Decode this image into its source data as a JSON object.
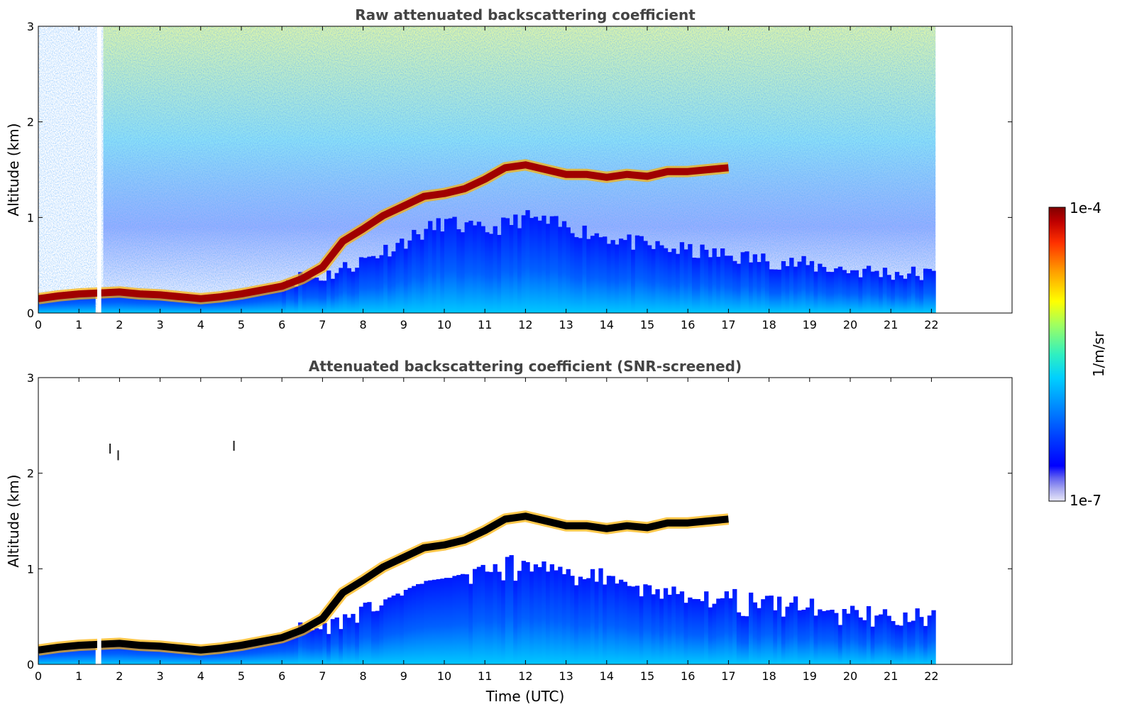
{
  "chart_data": [
    {
      "type": "heatmap",
      "title": "Raw attenuated backscattering coefficient",
      "xlabel": "",
      "ylabel": "Altitude (km)",
      "xlim": [
        0,
        24
      ],
      "ylim": [
        0,
        3
      ],
      "x_ticks": [
        "0",
        "1",
        "2",
        "3",
        "4",
        "5",
        "6",
        "7",
        "8",
        "9",
        "10",
        "11",
        "12",
        "13",
        "14",
        "15",
        "16",
        "17",
        "18",
        "19",
        "20",
        "21",
        "22"
      ],
      "y_ticks": [
        "0",
        "1",
        "2",
        "3"
      ],
      "data_end_time": 22.1,
      "gap_time": [
        1.45,
        1.55
      ],
      "noise_level": "high",
      "layers": {
        "boundary_layer_top_km": [
          [
            0,
            0.15
          ],
          [
            0.5,
            0.18
          ],
          [
            1.0,
            0.2
          ],
          [
            1.5,
            0.21
          ],
          [
            2.0,
            0.22
          ],
          [
            2.5,
            0.2
          ],
          [
            3.0,
            0.19
          ],
          [
            3.5,
            0.17
          ],
          [
            4.0,
            0.15
          ],
          [
            4.5,
            0.17
          ],
          [
            5.0,
            0.2
          ],
          [
            5.5,
            0.24
          ],
          [
            6.0,
            0.28
          ],
          [
            6.5,
            0.36
          ],
          [
            7.0,
            0.48
          ],
          [
            7.5,
            0.75
          ],
          [
            8.0,
            0.88
          ],
          [
            8.5,
            1.02
          ],
          [
            9.0,
            1.12
          ],
          [
            9.5,
            1.22
          ],
          [
            10.0,
            1.25
          ],
          [
            10.5,
            1.3
          ],
          [
            11.0,
            1.4
          ],
          [
            11.5,
            1.52
          ],
          [
            12.0,
            1.55
          ],
          [
            12.5,
            1.5
          ],
          [
            13.0,
            1.45
          ],
          [
            13.5,
            1.45
          ],
          [
            14.0,
            1.42
          ],
          [
            14.5,
            1.45
          ],
          [
            15.0,
            1.43
          ],
          [
            15.5,
            1.48
          ],
          [
            16.0,
            1.48
          ],
          [
            16.5,
            1.5
          ],
          [
            17.0,
            1.52
          ]
        ],
        "mixed_layer_top_km": [
          [
            6.0,
            0.35
          ],
          [
            7.0,
            0.38
          ],
          [
            8.0,
            0.55
          ],
          [
            9.0,
            0.75
          ],
          [
            10.0,
            0.95
          ],
          [
            11.0,
            0.85
          ],
          [
            12.0,
            1.0
          ],
          [
            13.0,
            0.9
          ],
          [
            14.0,
            0.8
          ],
          [
            15.0,
            0.7
          ],
          [
            16.0,
            0.65
          ],
          [
            17.0,
            0.6
          ],
          [
            18.0,
            0.55
          ],
          [
            19.0,
            0.5
          ],
          [
            20.0,
            0.45
          ],
          [
            21.0,
            0.42
          ],
          [
            22.0,
            0.4
          ]
        ]
      }
    },
    {
      "type": "heatmap",
      "title": "Attenuated backscattering coefficient (SNR-screened)",
      "xlabel": "Time (UTC)",
      "ylabel": "Altitude (km)",
      "xlim": [
        0,
        24
      ],
      "ylim": [
        0,
        3
      ],
      "x_ticks": [
        "0",
        "1",
        "2",
        "3",
        "4",
        "5",
        "6",
        "7",
        "8",
        "9",
        "10",
        "11",
        "12",
        "13",
        "14",
        "15",
        "16",
        "17",
        "18",
        "19",
        "20",
        "21",
        "22"
      ],
      "y_ticks": [
        "0",
        "1",
        "2",
        "3"
      ],
      "data_end_time": 22.1,
      "gap_time": [
        1.45,
        1.55
      ],
      "noise_level": "screened",
      "layers": {
        "boundary_layer_top_km": [
          [
            0,
            0.15
          ],
          [
            0.5,
            0.18
          ],
          [
            1.0,
            0.2
          ],
          [
            1.5,
            0.21
          ],
          [
            2.0,
            0.22
          ],
          [
            2.5,
            0.2
          ],
          [
            3.0,
            0.19
          ],
          [
            3.5,
            0.17
          ],
          [
            4.0,
            0.15
          ],
          [
            4.5,
            0.17
          ],
          [
            5.0,
            0.2
          ],
          [
            5.5,
            0.24
          ],
          [
            6.0,
            0.28
          ],
          [
            6.5,
            0.36
          ],
          [
            7.0,
            0.48
          ],
          [
            7.5,
            0.75
          ],
          [
            8.0,
            0.88
          ],
          [
            8.5,
            1.02
          ],
          [
            9.0,
            1.12
          ],
          [
            9.5,
            1.22
          ],
          [
            10.0,
            1.25
          ],
          [
            10.5,
            1.3
          ],
          [
            11.0,
            1.4
          ],
          [
            11.5,
            1.52
          ],
          [
            12.0,
            1.55
          ],
          [
            12.5,
            1.5
          ],
          [
            13.0,
            1.45
          ],
          [
            13.5,
            1.45
          ],
          [
            14.0,
            1.42
          ],
          [
            14.5,
            1.45
          ],
          [
            15.0,
            1.43
          ],
          [
            15.5,
            1.48
          ],
          [
            16.0,
            1.48
          ],
          [
            16.5,
            1.5
          ],
          [
            17.0,
            1.52
          ]
        ],
        "mixed_layer_top_km": [
          [
            6.0,
            0.35
          ],
          [
            7.0,
            0.38
          ],
          [
            8.0,
            0.55
          ],
          [
            9.0,
            0.75
          ],
          [
            10.0,
            0.95
          ],
          [
            11.0,
            0.85
          ],
          [
            12.0,
            1.0
          ],
          [
            13.0,
            0.9
          ],
          [
            14.0,
            0.8
          ],
          [
            15.0,
            0.7
          ],
          [
            16.0,
            0.65
          ],
          [
            17.0,
            0.6
          ],
          [
            18.0,
            0.55
          ],
          [
            19.0,
            0.5
          ],
          [
            20.0,
            0.45
          ],
          [
            21.0,
            0.42
          ],
          [
            22.0,
            0.4
          ]
        ],
        "isolated_points": [
          [
            1.75,
            2.25
          ],
          [
            1.95,
            2.18
          ],
          [
            4.8,
            2.28
          ]
        ]
      }
    }
  ],
  "colorbar": {
    "label": "1/m/sr",
    "min_label": "1e-7",
    "max_label": "1e-4",
    "colors": [
      "#e8e8f8",
      "#aaaaf0",
      "#6060f0",
      "#0000ff",
      "#0040ff",
      "#0090ff",
      "#00d0ff",
      "#30f0c0",
      "#a0ff60",
      "#ffff00",
      "#ffa000",
      "#ff3000",
      "#c00000",
      "#800000"
    ]
  }
}
